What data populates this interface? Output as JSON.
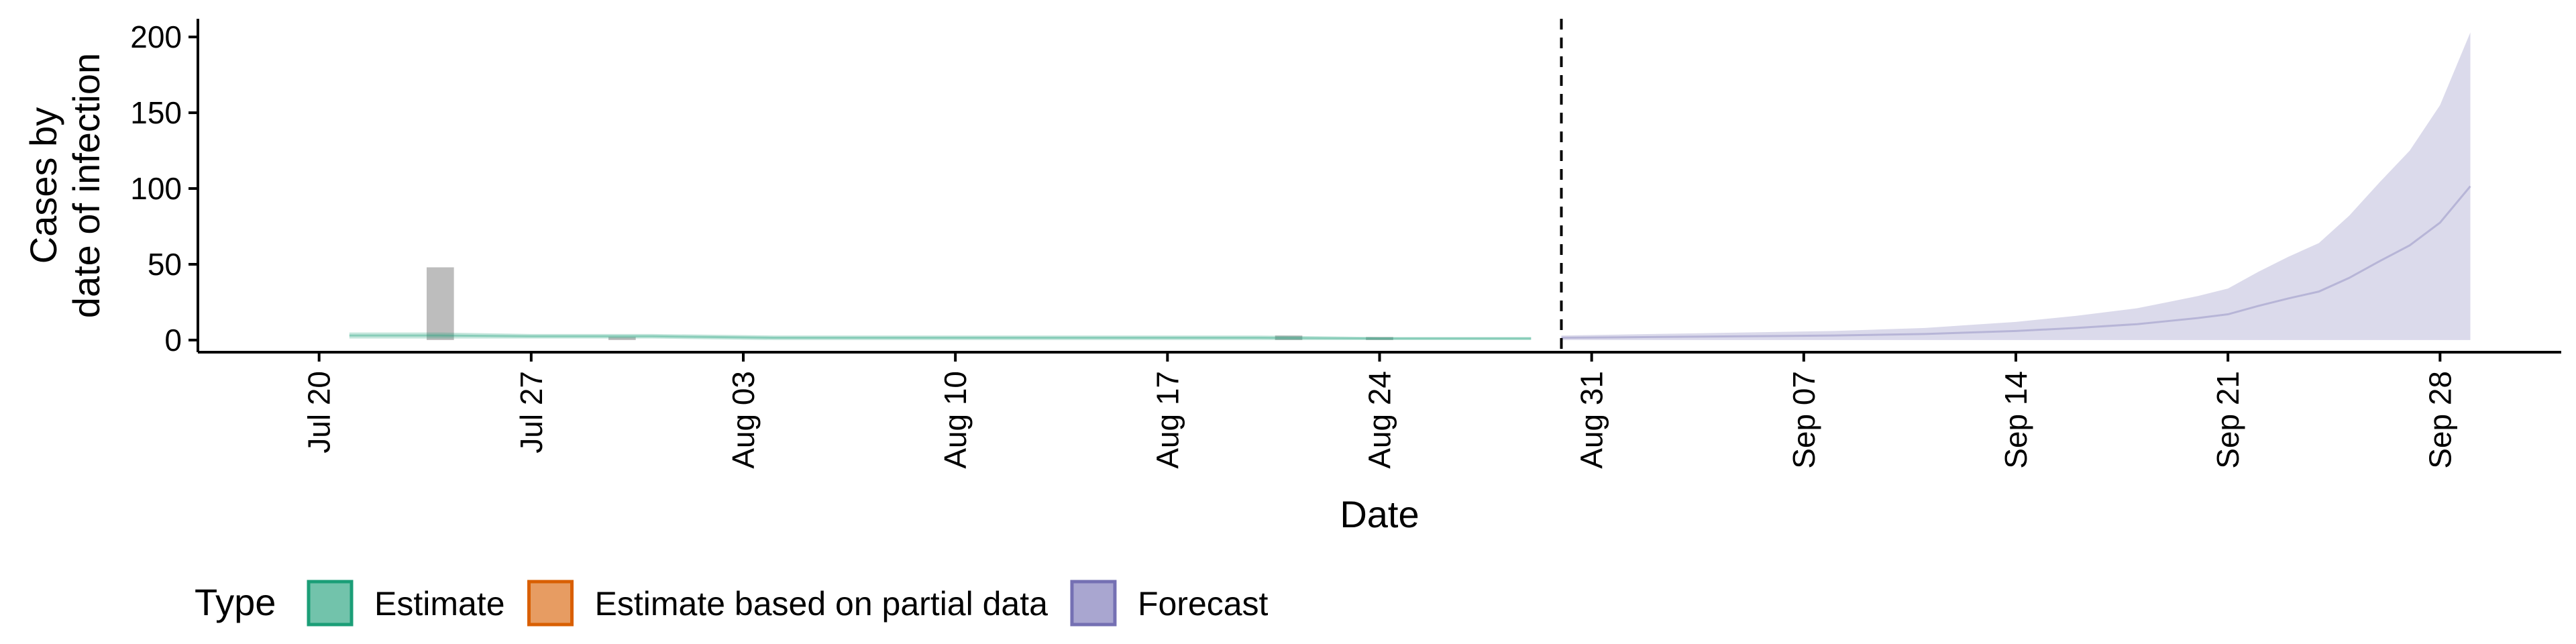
{
  "chart_data": {
    "type": "area",
    "xlabel": "Date",
    "ylabel": [
      "Cases by",
      "date of infection"
    ],
    "xlim": [
      "2020-07-16",
      "2020-10-02"
    ],
    "ylim": [
      -8,
      212
    ],
    "y_ticks": [
      0,
      50,
      100,
      150,
      200
    ],
    "x_ticks": [
      {
        "date": "2020-07-20",
        "label": "Jul 20"
      },
      {
        "date": "2020-07-27",
        "label": "Jul 27"
      },
      {
        "date": "2020-08-03",
        "label": "Aug 03"
      },
      {
        "date": "2020-08-10",
        "label": "Aug 10"
      },
      {
        "date": "2020-08-17",
        "label": "Aug 17"
      },
      {
        "date": "2020-08-24",
        "label": "Aug 24"
      },
      {
        "date": "2020-08-31",
        "label": "Aug 31"
      },
      {
        "date": "2020-09-07",
        "label": "Sep 07"
      },
      {
        "date": "2020-09-14",
        "label": "Sep 14"
      },
      {
        "date": "2020-09-21",
        "label": "Sep 21"
      },
      {
        "date": "2020-09-28",
        "label": "Sep 28"
      }
    ],
    "grid": false,
    "forecast_start_line": "2020-08-30",
    "reported_cases": [
      {
        "date": "2020-07-24",
        "value": 48
      },
      {
        "date": "2020-07-30",
        "value": 2
      },
      {
        "date": "2020-08-21",
        "value": 3
      },
      {
        "date": "2020-08-24",
        "value": 2
      }
    ],
    "estimate": {
      "dates": [
        "2020-07-21",
        "2020-07-24",
        "2020-07-27",
        "2020-07-31",
        "2020-08-04",
        "2020-08-08",
        "2020-08-12",
        "2020-08-16",
        "2020-08-20",
        "2020-08-24",
        "2020-08-29"
      ],
      "lower": [
        1,
        1,
        1,
        1,
        0,
        0,
        0,
        0,
        0,
        0,
        0
      ],
      "upper": [
        5,
        5,
        4,
        4,
        3,
        3,
        3,
        3,
        3,
        2,
        2
      ]
    },
    "forecast": {
      "dates": [
        "2020-08-30",
        "2020-09-02",
        "2020-09-05",
        "2020-09-08",
        "2020-09-11",
        "2020-09-14",
        "2020-09-16",
        "2020-09-18",
        "2020-09-19",
        "2020-09-20",
        "2020-09-21",
        "2020-09-22",
        "2020-09-23",
        "2020-09-24",
        "2020-09-25",
        "2020-09-26",
        "2020-09-27",
        "2020-09-28",
        "2020-09-29"
      ],
      "lower": [
        0,
        0,
        0,
        0,
        0,
        0,
        0,
        0,
        0,
        0,
        0,
        0,
        0,
        0,
        0,
        0,
        0,
        0,
        0
      ],
      "upper": [
        3,
        4,
        5,
        6,
        8,
        12,
        16,
        21,
        25,
        29,
        34,
        45,
        55,
        64,
        82,
        104,
        125,
        155,
        203
      ]
    },
    "colors": {
      "estimate": "#1b9e77",
      "estimate_partial": "#d95f02",
      "forecast": "#7570b3",
      "bars": "#bdbdbd"
    },
    "legend": {
      "title": "Type",
      "position": "bottom-left",
      "items": [
        {
          "label": "Estimate",
          "color": "#1b9e77"
        },
        {
          "label": "Estimate based on partial data",
          "color": "#d95f02"
        },
        {
          "label": "Forecast",
          "color": "#7570b3"
        }
      ]
    }
  }
}
